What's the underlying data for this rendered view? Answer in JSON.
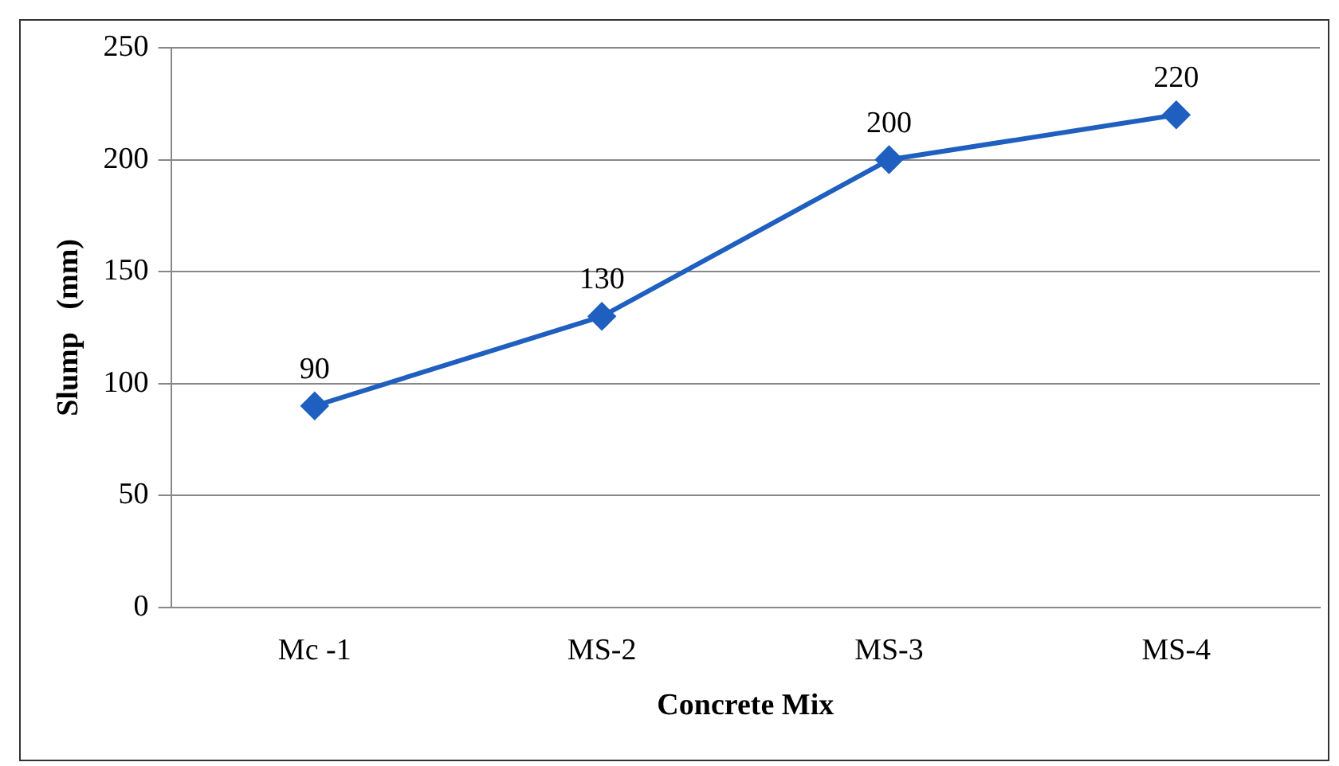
{
  "chart_data": {
    "type": "line",
    "xlabel": "Concrete Mix",
    "ylabel": "Slump   (mm)",
    "categories": [
      "Mc -1",
      "MS-2",
      "MS-3",
      "MS-4"
    ],
    "series": [
      {
        "color": "#1f5fbf",
        "values": [
          90,
          130,
          200,
          220
        ]
      }
    ],
    "ylim": [
      0,
      250
    ],
    "yticks": [
      0,
      50,
      100,
      150,
      200,
      250
    ],
    "grid": "y",
    "legend": false,
    "marker": "diamond",
    "line_style": "solid",
    "data_labels": true
  }
}
